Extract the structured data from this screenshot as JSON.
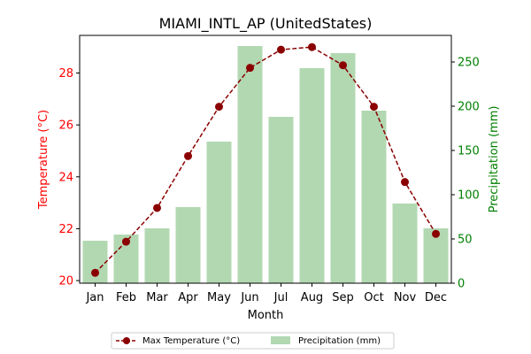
{
  "chart_data": {
    "type": "bar+line",
    "title": "MIAMI_INTL_AP (UnitedStates)",
    "xlabel": "Month",
    "categories": [
      "Jan",
      "Feb",
      "Mar",
      "Apr",
      "May",
      "Jun",
      "Jul",
      "Aug",
      "Sep",
      "Oct",
      "Nov",
      "Dec"
    ],
    "y_left": {
      "label": "Temperature (°C)",
      "color": "#ff0000",
      "ylim": [
        19.9,
        29.45
      ],
      "ticks": [
        20,
        22,
        24,
        26,
        28
      ]
    },
    "y_right": {
      "label": "Precipitation (mm)",
      "color": "#008000",
      "ylim": [
        0,
        280
      ],
      "ticks": [
        0,
        50,
        100,
        150,
        200,
        250
      ]
    },
    "series": [
      {
        "name": "Max Temperature (°C)",
        "kind": "line",
        "axis": "left",
        "color": "#8b0000",
        "linestyle": "dashed",
        "marker": "circle",
        "values": [
          20.3,
          21.5,
          22.8,
          24.8,
          26.7,
          28.2,
          28.9,
          29.0,
          28.3,
          26.7,
          23.8,
          21.8
        ]
      },
      {
        "name": "Precipitation (mm)",
        "kind": "bar",
        "axis": "right",
        "color": "#b2d8b2",
        "values": [
          48,
          55,
          62,
          86,
          160,
          268,
          188,
          243,
          260,
          195,
          90,
          62
        ]
      }
    ],
    "legend": {
      "placement": "bottom-center",
      "columns": 2
    },
    "grid": false
  }
}
